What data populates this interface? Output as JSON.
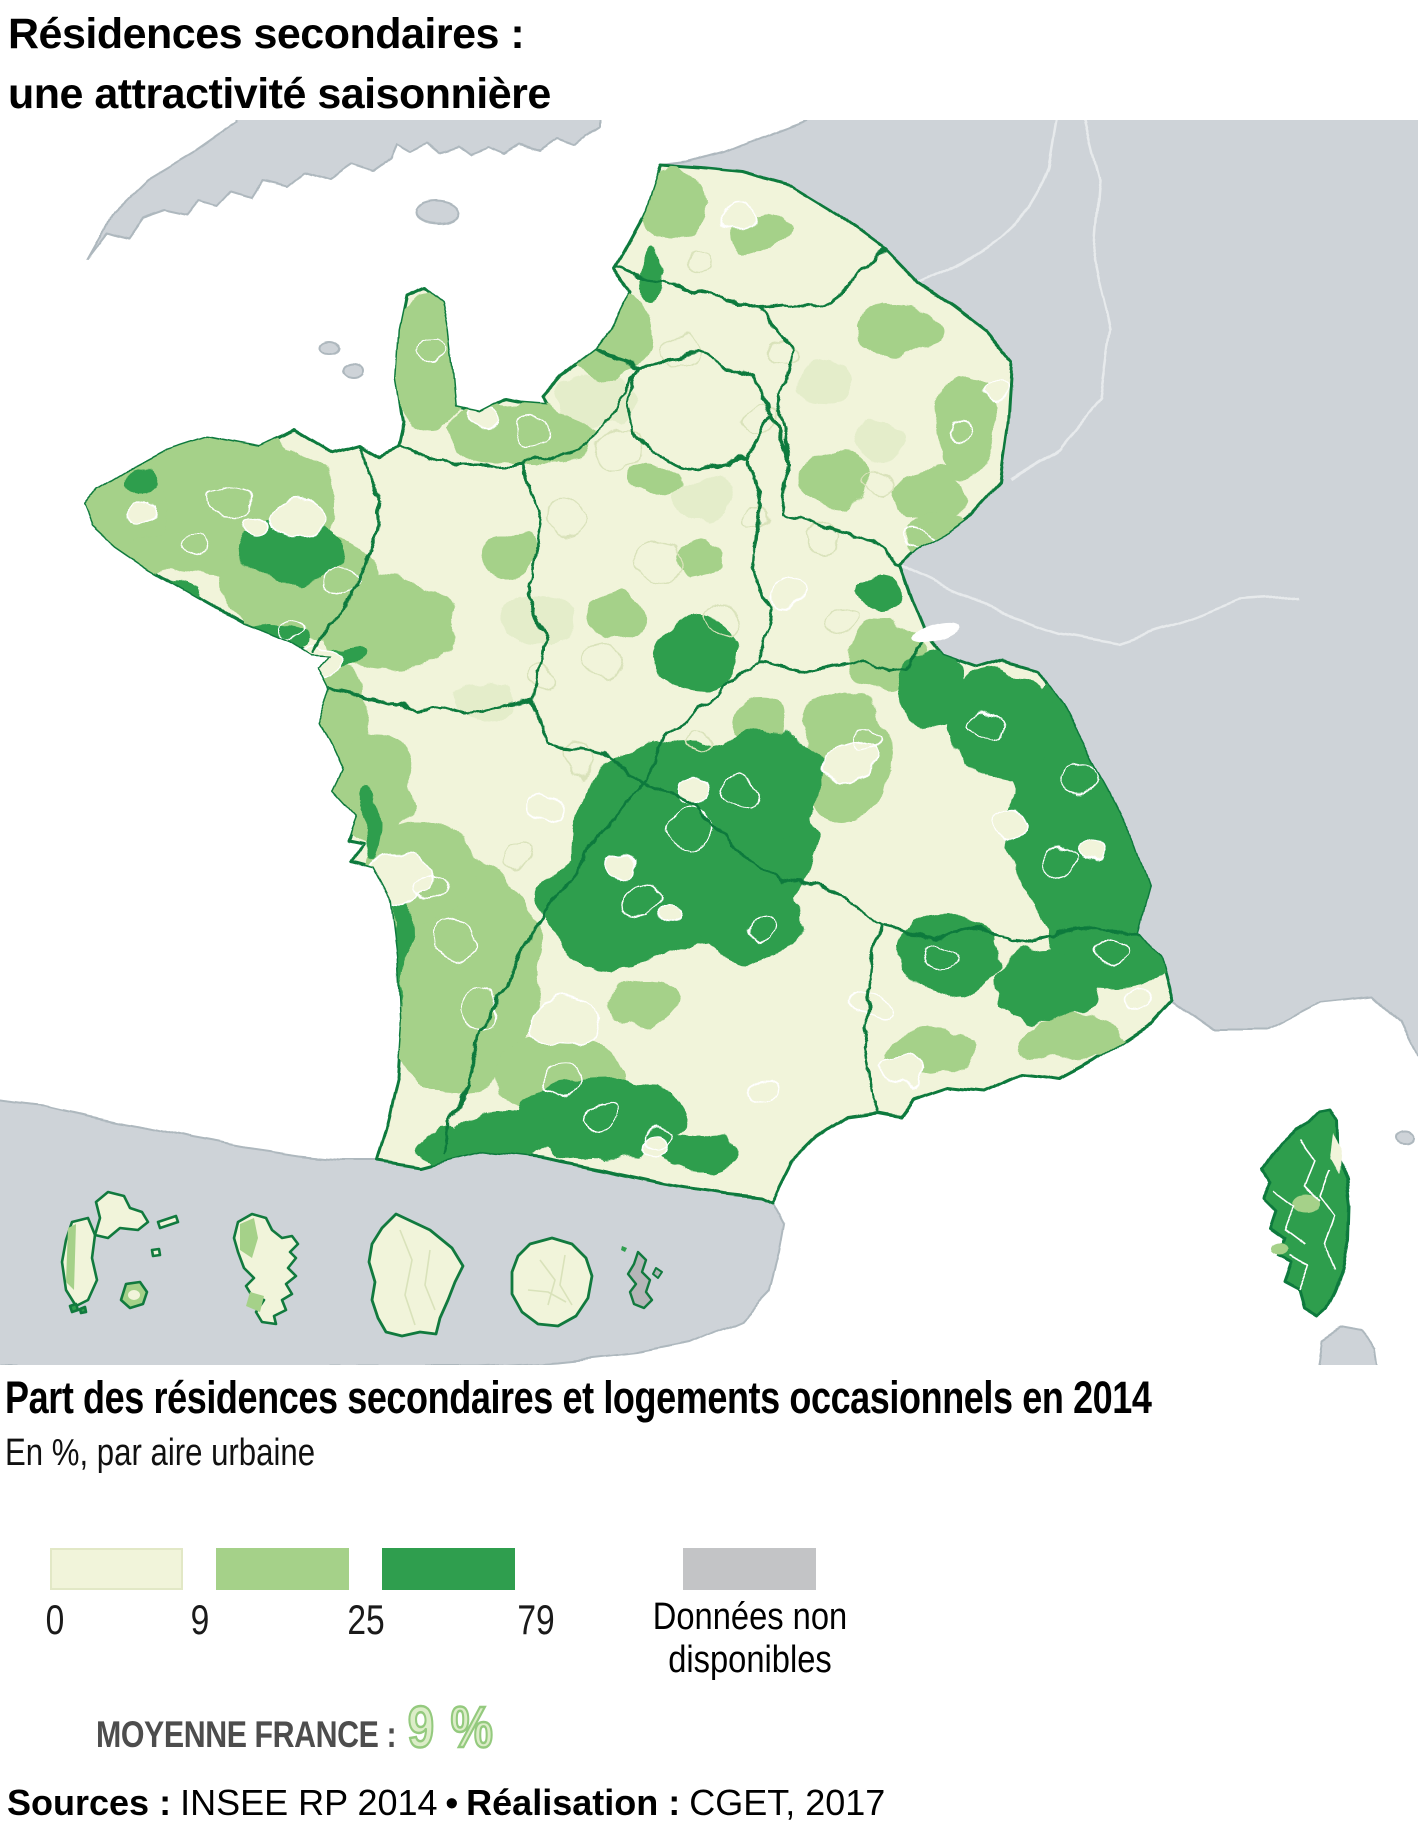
{
  "title": {
    "line1": "Résidences secondaires :",
    "line2": "une attractivité saisonnière"
  },
  "caption": {
    "heading": "Part des résidences secondaires et logements occasionnels en 2014",
    "unit_note": "En %, par aire urbaine"
  },
  "legend": {
    "scale_ticks": [
      "0",
      "9",
      "25",
      "79"
    ],
    "classes": [
      {
        "range": "0–9 %",
        "color": "#f1f4da"
      },
      {
        "range": "9–25 %",
        "color": "#a5d189"
      },
      {
        "range": "25–79 %",
        "color": "#2f9e4e"
      }
    ],
    "no_data": {
      "label_line1": "Données non",
      "label_line2": "disponibles",
      "color": "#c3c4c6"
    },
    "average": {
      "label": "MOYENNE FRANCE :",
      "value": "9 %"
    }
  },
  "sources": {
    "prefix": "Sources :",
    "source_text": "INSEE RP 2014",
    "separator": "•",
    "realisation_label": "Réalisation :",
    "realisation_text": "CGET, 2017"
  },
  "map": {
    "colors": {
      "class1": "#f1f4da",
      "class2": "#a5d189",
      "class3": "#2f9e4e",
      "no_data": "#c3c4c6",
      "region_border": "#117a3e",
      "foreign_land": "#ced3d8",
      "sea": "#ffffff",
      "urban_border_light": "#ffffff",
      "urban_border_olive": "#d9e2ba"
    }
  }
}
